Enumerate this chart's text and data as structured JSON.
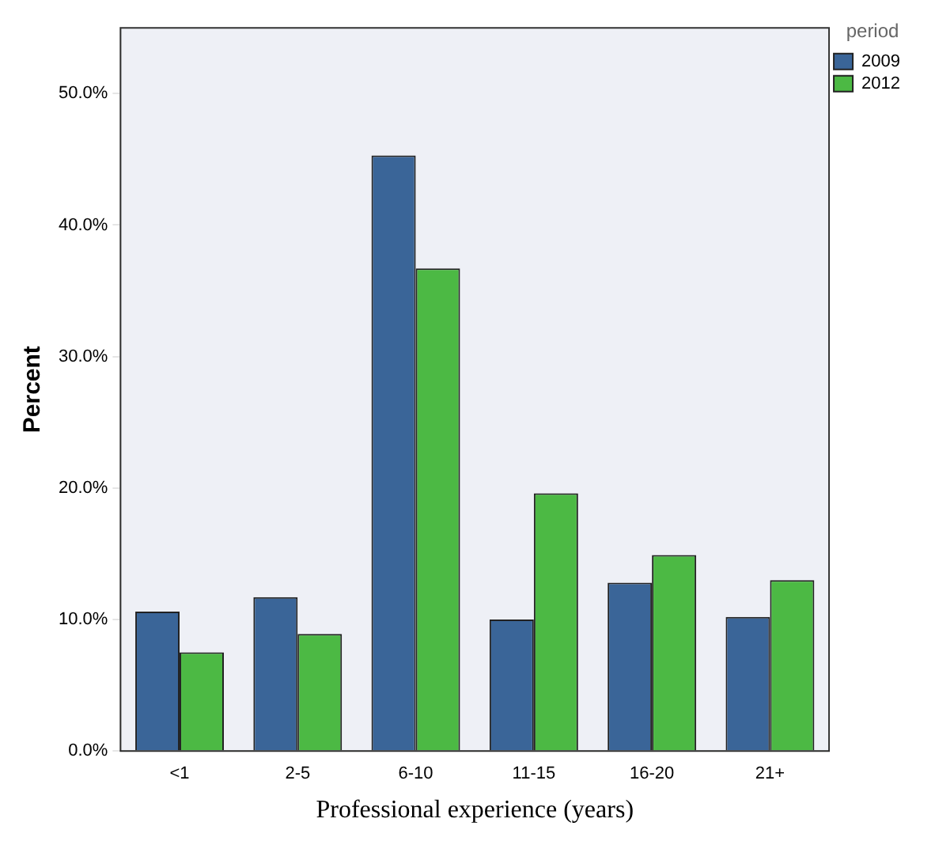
{
  "chart_data": {
    "type": "bar",
    "xlabel": "Professional experience (years)",
    "ylabel": "Percent",
    "legend_title": "period",
    "categories": [
      "<1",
      "2-5",
      "6-10",
      "11-15",
      "16-20",
      "21+"
    ],
    "series": [
      {
        "name": "2009",
        "color": "#3a6598",
        "values": [
          10.6,
          11.7,
          45.3,
          10.0,
          12.8,
          10.2
        ]
      },
      {
        "name": "2012",
        "color": "#4cb944",
        "values": [
          7.5,
          8.9,
          36.7,
          19.6,
          14.9,
          13.0
        ]
      }
    ],
    "ylim": [
      0,
      55
    ],
    "yticks": [
      {
        "value": 0,
        "label": "0.0%"
      },
      {
        "value": 10,
        "label": "10.0%"
      },
      {
        "value": 20,
        "label": "20.0%"
      },
      {
        "value": 30,
        "label": "30.0%"
      },
      {
        "value": 40,
        "label": "40.0%"
      },
      {
        "value": 50,
        "label": "50.0%"
      }
    ],
    "grid": false,
    "legend": "top right"
  }
}
